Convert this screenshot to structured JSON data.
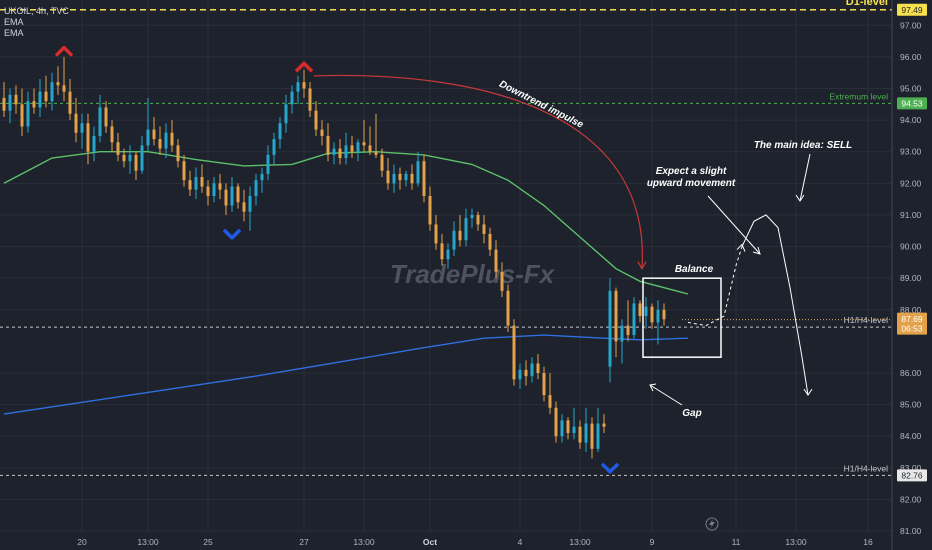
{
  "header": {
    "symbol_line": "UKOIL, 4h, TVC",
    "indicator_1": "EMA",
    "indicator_2": "EMA"
  },
  "colors": {
    "background": "#1e222d",
    "up_bar": "#26a6c9",
    "down_bar": "#e3a24a",
    "ema_fast": "#5cc06a",
    "ema_slow": "#2f6fe0",
    "d1_level": "#f7e04b",
    "extremum_level": "#4caf50",
    "h1_level": "#c9c9c9",
    "downtrend_arrow": "#c8393a",
    "marker_top": "#d92b2b",
    "marker_bottom": "#1e5ae6"
  },
  "chart_data": {
    "type": "candlestick",
    "symbol": "UKOIL",
    "timeframe": "4h",
    "source": "TVC",
    "watermark": "TradePlus-Fx",
    "y_axis": {
      "range": [
        80.4,
        97.8
      ],
      "ticks": [
        "97.00",
        "96.00",
        "95.00",
        "94.00",
        "93.00",
        "92.00",
        "91.00",
        "90.00",
        "89.00",
        "88.00",
        "86.00",
        "85.00",
        "84.00",
        "83.00",
        "82.00",
        "81.00"
      ]
    },
    "x_axis": {
      "ticks": [
        {
          "label": "20",
          "bar": 13
        },
        {
          "label": "13:00",
          "bar": 24
        },
        {
          "label": "25",
          "bar": 34
        },
        {
          "label": "27",
          "bar": 50
        },
        {
          "label": "13:00",
          "bar": 60
        },
        {
          "label": "Oct",
          "bar": 71
        },
        {
          "label": "4",
          "bar": 86
        },
        {
          "label": "13:00",
          "bar": 96
        },
        {
          "label": "9",
          "bar": 108
        },
        {
          "label": "11",
          "bar": 122
        },
        {
          "label": "13:00",
          "bar": 132
        },
        {
          "label": "16",
          "bar": 144
        }
      ]
    },
    "candles": [
      {
        "o": 94.7,
        "h": 95.2,
        "l": 94.1,
        "c": 94.3
      },
      {
        "o": 94.3,
        "h": 95.0,
        "l": 93.9,
        "c": 94.8
      },
      {
        "o": 94.8,
        "h": 95.1,
        "l": 94.2,
        "c": 94.5
      },
      {
        "o": 94.5,
        "h": 95.0,
        "l": 93.5,
        "c": 93.8
      },
      {
        "o": 93.8,
        "h": 94.9,
        "l": 93.6,
        "c": 94.6
      },
      {
        "o": 94.6,
        "h": 95.0,
        "l": 94.2,
        "c": 94.4
      },
      {
        "o": 94.4,
        "h": 95.3,
        "l": 94.1,
        "c": 94.9
      },
      {
        "o": 94.9,
        "h": 95.4,
        "l": 94.4,
        "c": 94.6
      },
      {
        "o": 94.6,
        "h": 95.5,
        "l": 94.3,
        "c": 95.2
      },
      {
        "o": 95.2,
        "h": 95.7,
        "l": 94.8,
        "c": 95.1
      },
      {
        "o": 95.1,
        "h": 96.0,
        "l": 94.6,
        "c": 94.9
      },
      {
        "o": 94.9,
        "h": 95.3,
        "l": 94.0,
        "c": 94.2
      },
      {
        "o": 94.2,
        "h": 94.7,
        "l": 93.3,
        "c": 93.6
      },
      {
        "o": 93.6,
        "h": 94.2,
        "l": 93.1,
        "c": 93.9
      },
      {
        "o": 93.9,
        "h": 94.2,
        "l": 92.6,
        "c": 93.0
      },
      {
        "o": 93.0,
        "h": 93.8,
        "l": 92.7,
        "c": 93.5
      },
      {
        "o": 93.5,
        "h": 94.8,
        "l": 93.3,
        "c": 94.4
      },
      {
        "o": 94.4,
        "h": 94.6,
        "l": 93.6,
        "c": 93.8
      },
      {
        "o": 93.8,
        "h": 94.0,
        "l": 93.0,
        "c": 93.3
      },
      {
        "o": 93.3,
        "h": 93.6,
        "l": 92.7,
        "c": 92.9
      },
      {
        "o": 92.9,
        "h": 93.1,
        "l": 92.5,
        "c": 92.7
      },
      {
        "o": 92.7,
        "h": 93.2,
        "l": 92.3,
        "c": 92.9
      },
      {
        "o": 92.9,
        "h": 93.0,
        "l": 92.1,
        "c": 92.4
      },
      {
        "o": 92.4,
        "h": 93.5,
        "l": 92.3,
        "c": 93.2
      },
      {
        "o": 93.2,
        "h": 94.7,
        "l": 93.0,
        "c": 93.7
      },
      {
        "o": 93.7,
        "h": 94.1,
        "l": 93.2,
        "c": 93.4
      },
      {
        "o": 93.4,
        "h": 93.8,
        "l": 92.9,
        "c": 93.1
      },
      {
        "o": 93.1,
        "h": 93.9,
        "l": 92.8,
        "c": 93.6
      },
      {
        "o": 93.6,
        "h": 94.0,
        "l": 93.0,
        "c": 93.2
      },
      {
        "o": 93.2,
        "h": 93.4,
        "l": 92.5,
        "c": 92.7
      },
      {
        "o": 92.7,
        "h": 92.9,
        "l": 91.9,
        "c": 92.1
      },
      {
        "o": 92.1,
        "h": 92.4,
        "l": 91.6,
        "c": 91.8
      },
      {
        "o": 91.8,
        "h": 92.5,
        "l": 91.5,
        "c": 92.2
      },
      {
        "o": 92.2,
        "h": 92.6,
        "l": 91.7,
        "c": 91.9
      },
      {
        "o": 91.9,
        "h": 92.1,
        "l": 91.3,
        "c": 91.6
      },
      {
        "o": 91.6,
        "h": 92.2,
        "l": 91.4,
        "c": 92.0
      },
      {
        "o": 92.0,
        "h": 92.3,
        "l": 91.5,
        "c": 91.8
      },
      {
        "o": 91.8,
        "h": 92.0,
        "l": 91.0,
        "c": 91.3
      },
      {
        "o": 91.3,
        "h": 92.2,
        "l": 91.1,
        "c": 91.9
      },
      {
        "o": 91.9,
        "h": 92.0,
        "l": 91.2,
        "c": 91.4
      },
      {
        "o": 91.4,
        "h": 91.8,
        "l": 90.8,
        "c": 91.1
      },
      {
        "o": 91.1,
        "h": 91.9,
        "l": 90.5,
        "c": 91.6
      },
      {
        "o": 91.6,
        "h": 92.3,
        "l": 91.3,
        "c": 92.1
      },
      {
        "o": 92.1,
        "h": 92.5,
        "l": 91.7,
        "c": 92.3
      },
      {
        "o": 92.3,
        "h": 93.2,
        "l": 92.1,
        "c": 92.9
      },
      {
        "o": 92.9,
        "h": 93.6,
        "l": 92.6,
        "c": 93.4
      },
      {
        "o": 93.4,
        "h": 94.1,
        "l": 93.1,
        "c": 93.9
      },
      {
        "o": 93.9,
        "h": 94.8,
        "l": 93.6,
        "c": 94.5
      },
      {
        "o": 94.5,
        "h": 95.1,
        "l": 94.2,
        "c": 94.9
      },
      {
        "o": 94.9,
        "h": 95.4,
        "l": 94.5,
        "c": 95.2
      },
      {
        "o": 95.2,
        "h": 95.6,
        "l": 94.7,
        "c": 95.0
      },
      {
        "o": 95.0,
        "h": 95.2,
        "l": 94.1,
        "c": 94.3
      },
      {
        "o": 94.3,
        "h": 94.6,
        "l": 93.5,
        "c": 93.7
      },
      {
        "o": 93.7,
        "h": 94.0,
        "l": 93.2,
        "c": 93.5
      },
      {
        "o": 93.5,
        "h": 93.9,
        "l": 92.7,
        "c": 92.9
      },
      {
        "o": 92.9,
        "h": 93.3,
        "l": 92.6,
        "c": 93.1
      },
      {
        "o": 93.1,
        "h": 93.4,
        "l": 92.6,
        "c": 92.8
      },
      {
        "o": 92.8,
        "h": 93.6,
        "l": 92.6,
        "c": 93.2
      },
      {
        "o": 93.2,
        "h": 93.5,
        "l": 92.8,
        "c": 93.0
      },
      {
        "o": 93.0,
        "h": 93.4,
        "l": 92.7,
        "c": 93.3
      },
      {
        "o": 93.3,
        "h": 94.0,
        "l": 93.0,
        "c": 93.2
      },
      {
        "o": 93.2,
        "h": 93.8,
        "l": 92.9,
        "c": 93.0
      },
      {
        "o": 93.0,
        "h": 94.2,
        "l": 92.8,
        "c": 92.9
      },
      {
        "o": 92.9,
        "h": 93.1,
        "l": 92.2,
        "c": 92.4
      },
      {
        "o": 92.4,
        "h": 92.8,
        "l": 91.8,
        "c": 92.0
      },
      {
        "o": 92.0,
        "h": 92.6,
        "l": 91.7,
        "c": 92.3
      },
      {
        "o": 92.3,
        "h": 92.5,
        "l": 91.8,
        "c": 92.1
      },
      {
        "o": 92.1,
        "h": 92.4,
        "l": 91.9,
        "c": 92.3
      },
      {
        "o": 92.3,
        "h": 92.6,
        "l": 91.8,
        "c": 92.0
      },
      {
        "o": 92.0,
        "h": 93.0,
        "l": 91.9,
        "c": 92.7
      },
      {
        "o": 92.7,
        "h": 92.9,
        "l": 91.4,
        "c": 91.6
      },
      {
        "o": 91.6,
        "h": 91.9,
        "l": 90.5,
        "c": 90.7
      },
      {
        "o": 90.7,
        "h": 91.0,
        "l": 89.9,
        "c": 90.1
      },
      {
        "o": 90.1,
        "h": 90.4,
        "l": 89.4,
        "c": 89.6
      },
      {
        "o": 89.6,
        "h": 90.1,
        "l": 89.3,
        "c": 89.9
      },
      {
        "o": 89.9,
        "h": 90.8,
        "l": 89.7,
        "c": 90.5
      },
      {
        "o": 90.5,
        "h": 91.0,
        "l": 90.0,
        "c": 90.2
      },
      {
        "o": 90.2,
        "h": 91.2,
        "l": 90.0,
        "c": 90.9
      },
      {
        "o": 90.9,
        "h": 91.2,
        "l": 90.6,
        "c": 91.0
      },
      {
        "o": 91.0,
        "h": 91.1,
        "l": 90.5,
        "c": 90.7
      },
      {
        "o": 90.7,
        "h": 91.0,
        "l": 90.1,
        "c": 90.4
      },
      {
        "o": 90.4,
        "h": 90.6,
        "l": 89.7,
        "c": 89.9
      },
      {
        "o": 89.9,
        "h": 90.2,
        "l": 89.0,
        "c": 89.2
      },
      {
        "o": 89.2,
        "h": 89.5,
        "l": 88.4,
        "c": 88.6
      },
      {
        "o": 88.6,
        "h": 88.8,
        "l": 87.3,
        "c": 87.5
      },
      {
        "o": 87.5,
        "h": 87.7,
        "l": 85.6,
        "c": 85.8
      },
      {
        "o": 85.8,
        "h": 86.3,
        "l": 85.5,
        "c": 86.1
      },
      {
        "o": 86.1,
        "h": 86.4,
        "l": 85.6,
        "c": 85.9
      },
      {
        "o": 85.9,
        "h": 86.5,
        "l": 85.7,
        "c": 86.3
      },
      {
        "o": 86.3,
        "h": 86.6,
        "l": 85.8,
        "c": 86.0
      },
      {
        "o": 86.0,
        "h": 86.2,
        "l": 85.1,
        "c": 85.3
      },
      {
        "o": 85.3,
        "h": 86.0,
        "l": 84.7,
        "c": 84.9
      },
      {
        "o": 84.9,
        "h": 85.1,
        "l": 83.8,
        "c": 84.0
      },
      {
        "o": 84.0,
        "h": 84.7,
        "l": 83.8,
        "c": 84.5
      },
      {
        "o": 84.5,
        "h": 84.6,
        "l": 83.9,
        "c": 84.1
      },
      {
        "o": 84.1,
        "h": 84.9,
        "l": 83.9,
        "c": 84.3
      },
      {
        "o": 84.3,
        "h": 84.5,
        "l": 83.6,
        "c": 83.8
      },
      {
        "o": 83.8,
        "h": 84.9,
        "l": 83.5,
        "c": 84.4
      },
      {
        "o": 84.4,
        "h": 84.6,
        "l": 83.3,
        "c": 83.6
      },
      {
        "o": 83.6,
        "h": 84.9,
        "l": 83.5,
        "c": 84.4
      },
      {
        "o": 84.4,
        "h": 84.7,
        "l": 84.1,
        "c": 84.3
      },
      {
        "o": 86.2,
        "h": 89.0,
        "l": 85.7,
        "c": 88.6
      },
      {
        "o": 88.6,
        "h": 88.7,
        "l": 86.5,
        "c": 87.0
      },
      {
        "o": 87.0,
        "h": 87.7,
        "l": 86.3,
        "c": 87.5
      },
      {
        "o": 87.5,
        "h": 88.3,
        "l": 87.0,
        "c": 87.2
      },
      {
        "o": 87.2,
        "h": 88.4,
        "l": 87.1,
        "c": 88.2
      },
      {
        "o": 88.2,
        "h": 88.3,
        "l": 87.6,
        "c": 87.8
      },
      {
        "o": 87.8,
        "h": 88.4,
        "l": 87.4,
        "c": 88.1
      },
      {
        "o": 88.1,
        "h": 88.2,
        "l": 87.4,
        "c": 87.6
      },
      {
        "o": 87.6,
        "h": 88.3,
        "l": 86.9,
        "c": 88.0
      },
      {
        "o": 88.0,
        "h": 88.2,
        "l": 87.5,
        "c": 87.7
      }
    ],
    "ema_fast": [
      [
        0,
        92.0
      ],
      [
        8,
        92.8
      ],
      [
        16,
        93.0
      ],
      [
        24,
        93.0
      ],
      [
        32,
        92.75
      ],
      [
        40,
        92.55
      ],
      [
        48,
        92.6
      ],
      [
        54,
        92.95
      ],
      [
        62,
        93.0
      ],
      [
        70,
        92.9
      ],
      [
        78,
        92.6
      ],
      [
        84,
        92.1
      ],
      [
        90,
        91.3
      ],
      [
        96,
        90.3
      ],
      [
        102,
        89.3
      ],
      [
        106,
        88.9
      ],
      [
        112,
        88.6
      ],
      [
        114,
        88.5
      ]
    ],
    "ema_slow": [
      [
        0,
        84.7
      ],
      [
        14,
        85.1
      ],
      [
        28,
        85.5
      ],
      [
        42,
        85.9
      ],
      [
        56,
        86.35
      ],
      [
        70,
        86.8
      ],
      [
        80,
        87.1
      ],
      [
        90,
        87.2
      ],
      [
        100,
        87.1
      ],
      [
        106,
        87.05
      ],
      [
        114,
        87.1
      ]
    ],
    "levels": [
      {
        "name": "D1-level",
        "value": 97.49,
        "price_label": "97.49",
        "style": "dashed"
      },
      {
        "name": "Extremum level",
        "value": 94.53,
        "price_label": "94.53",
        "style": "dashed"
      },
      {
        "name": "H1/H4-level",
        "value": 87.45,
        "price_label": "87.45",
        "style": "dashed"
      },
      {
        "name": "H1/H4-level",
        "value": 82.76,
        "price_label": "82.76",
        "style": "dashed"
      }
    ],
    "current_price": {
      "value": 87.69,
      "label": "87.69",
      "countdown": "06:53"
    },
    "annotations": {
      "downtrend": "Downtrend impulse",
      "expect": "Expect a slight upward movement",
      "main_idea": "The main idea: SELL",
      "balance": "Balance",
      "gap": "Gap"
    },
    "balance_box": {
      "bar_start": 107,
      "bar_end": 119,
      "y_top": 89.0,
      "y_bottom": 86.5
    },
    "projection": [
      [
        114,
        87.6
      ],
      [
        117,
        87.5
      ],
      [
        120,
        87.8
      ],
      [
        122,
        89.4
      ],
      [
        123,
        90.0
      ],
      [
        125,
        90.8
      ],
      [
        127,
        91.0
      ],
      [
        129,
        90.6
      ],
      [
        131,
        88.7
      ],
      [
        133,
        86.5
      ],
      [
        134,
        85.3
      ]
    ],
    "markers": [
      {
        "type": "top",
        "bar": 10,
        "y": 96.2
      },
      {
        "type": "top",
        "bar": 50,
        "y": 95.7
      },
      {
        "type": "bottom",
        "bar": 38,
        "y": 90.4
      },
      {
        "type": "bottom",
        "bar": 101,
        "y": 83.0
      }
    ]
  }
}
